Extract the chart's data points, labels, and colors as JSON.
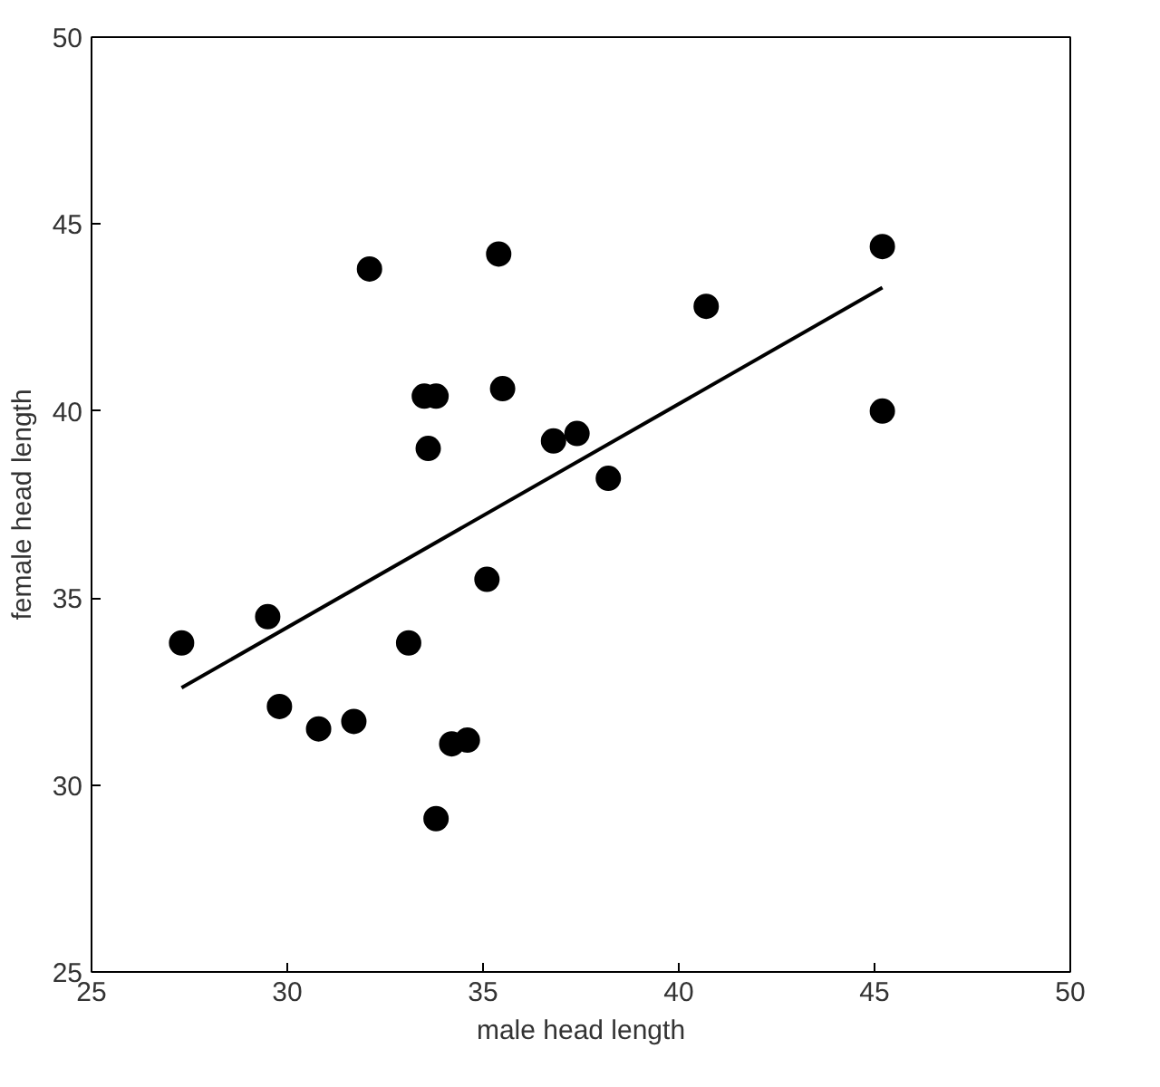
{
  "chart_data": {
    "type": "scatter",
    "xlabel": "male head length",
    "ylabel": "female head length",
    "xlim": [
      25,
      50
    ],
    "ylim": [
      25,
      50
    ],
    "xticks": [
      25,
      30,
      35,
      40,
      45,
      50
    ],
    "yticks": [
      25,
      30,
      35,
      40,
      45,
      50
    ],
    "grid": false,
    "marker": "circle",
    "series": [
      {
        "color": "#000000",
        "x": [
          27.3,
          29.5,
          29.8,
          30.8,
          31.7,
          32.1,
          33.1,
          33.5,
          33.8,
          33.6,
          33.8,
          34.2,
          34.6,
          35.1,
          35.4,
          35.5,
          36.8,
          37.4,
          38.2,
          40.7,
          45.2,
          45.2
        ],
        "values": [
          33.8,
          34.5,
          32.1,
          31.5,
          31.7,
          43.8,
          33.8,
          40.4,
          40.4,
          39.0,
          29.1,
          31.1,
          31.2,
          35.5,
          44.2,
          40.6,
          39.2,
          39.4,
          38.2,
          42.8,
          44.4,
          40.0
        ]
      },
      {
        "type": "line",
        "color": "#000000",
        "line_style": "solid",
        "marker": "none",
        "x": [
          27.3,
          45.2
        ],
        "values": [
          32.6,
          43.3
        ]
      }
    ]
  }
}
